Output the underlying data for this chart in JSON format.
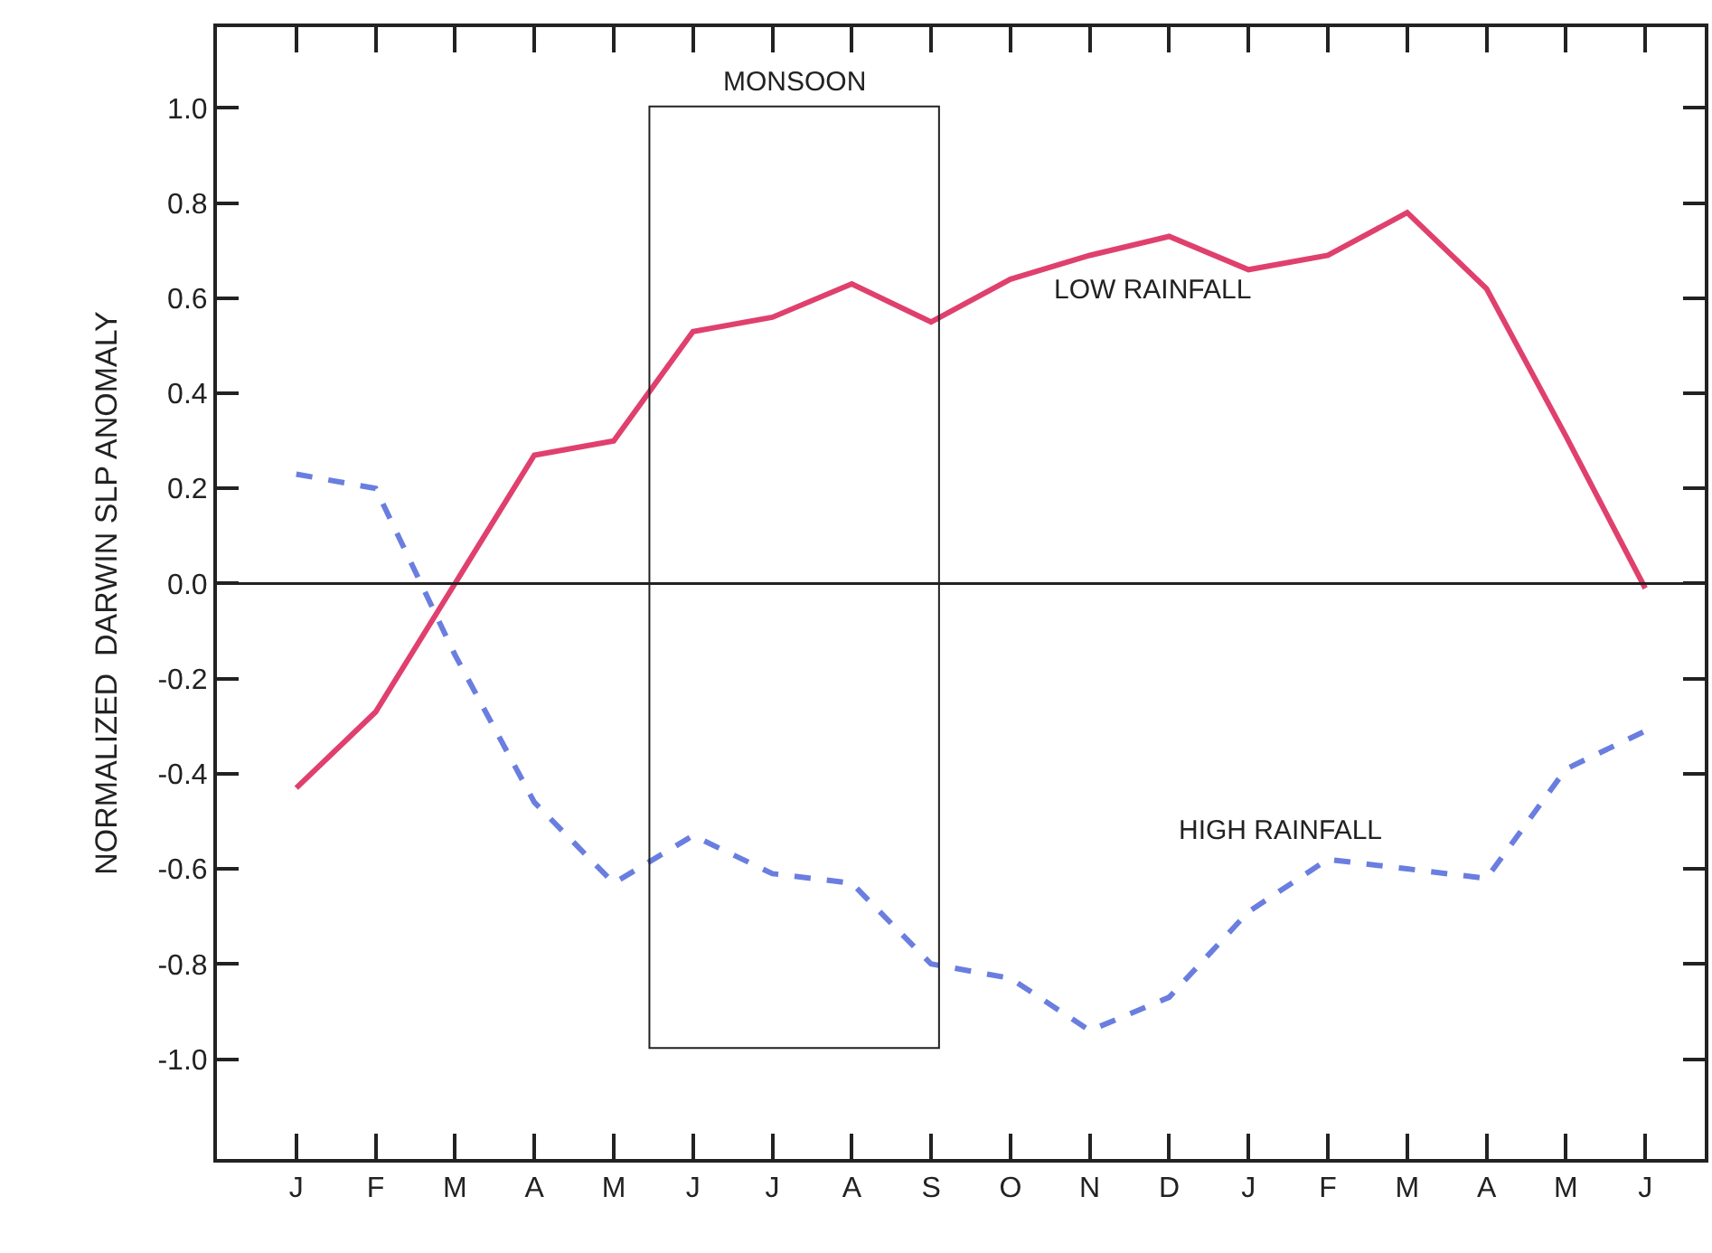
{
  "chart_data": {
    "type": "line",
    "ylabel": "NORMALIZED  DARWIN SLP ANOMALY",
    "categories": [
      "J",
      "F",
      "M",
      "A",
      "M",
      "J",
      "J",
      "A",
      "S",
      "O",
      "N",
      "D",
      "J",
      "F",
      "M",
      "A",
      "M",
      "J"
    ],
    "ylim": [
      -1.21,
      1.17
    ],
    "yticks": [
      {
        "value": -1.0,
        "label": "-1.0"
      },
      {
        "value": -0.8,
        "label": "-0.8"
      },
      {
        "value": -0.6,
        "label": "-0.6"
      },
      {
        "value": -0.4,
        "label": "-0.4"
      },
      {
        "value": -0.2,
        "label": "-0.2"
      },
      {
        "value": 0,
        "label": "0.0"
      },
      {
        "value": 0.2,
        "label": "0.2"
      },
      {
        "value": 0.4,
        "label": "0.4"
      },
      {
        "value": 0.6,
        "label": "0.6"
      },
      {
        "value": 0.8,
        "label": "0.8"
      },
      {
        "value": 1.0,
        "label": "1.0"
      }
    ],
    "series": [
      {
        "name": "LOW RAINFALL",
        "color": "#e0406e",
        "line_style": "solid",
        "values": [
          -0.43,
          -0.27,
          0.0,
          0.27,
          0.3,
          0.53,
          0.56,
          0.63,
          0.55,
          0.64,
          0.69,
          0.73,
          0.66,
          0.69,
          0.78,
          0.62,
          0.31,
          -0.01
        ]
      },
      {
        "name": "HIGH RAINFALL",
        "color": "#6a7ee0",
        "line_style": "dashed",
        "values": [
          0.23,
          0.2,
          -0.15,
          -0.46,
          -0.63,
          -0.53,
          -0.61,
          -0.63,
          -0.8,
          -0.83,
          -0.94,
          -0.87,
          -0.69,
          -0.58,
          -0.6,
          -0.62,
          -0.39,
          -0.31
        ]
      }
    ],
    "ref_lines": [
      {
        "axis": "y",
        "value": 0
      }
    ],
    "annotations": [
      "MONSOON"
    ],
    "legend": false,
    "marker": "none"
  }
}
